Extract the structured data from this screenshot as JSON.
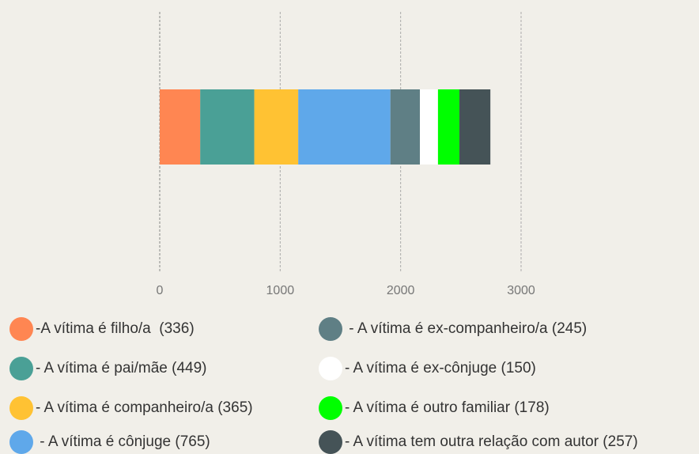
{
  "chart_data": {
    "type": "stacked-bar-horizontal",
    "categories": [
      null
    ],
    "series": [
      {
        "name": "-A vítima é filho/a  (336)",
        "color": "#ff8652",
        "values": [
          336
        ]
      },
      {
        "name": "- A vítima é pai/mãe (449)",
        "color": "#4aa096",
        "values": [
          449
        ]
      },
      {
        "name": "- A vítima é companheiro/a (365)",
        "color": "#ffc233",
        "values": [
          365
        ]
      },
      {
        "name": " - A vítima é cônjuge (765)",
        "color": "#5fa8ea",
        "values": [
          765
        ]
      },
      {
        "name": " - A vítima é ex-companheiro/a (245)",
        "color": "#5f7f85",
        "values": [
          245
        ]
      },
      {
        "name": "- A vítima é ex-cônjuge (150)",
        "color": "#ffffff",
        "values": [
          150
        ]
      },
      {
        "name": "- A vítima é outro familiar (178)",
        "color": "#00ff00",
        "values": [
          178
        ]
      },
      {
        "name": "- A vítima tem outra relação com autor (257)",
        "color": "#455357",
        "values": [
          257
        ]
      }
    ],
    "xlim": [
      0,
      3000
    ],
    "xticks": [
      0,
      1000,
      2000,
      3000
    ],
    "grid": true
  }
}
